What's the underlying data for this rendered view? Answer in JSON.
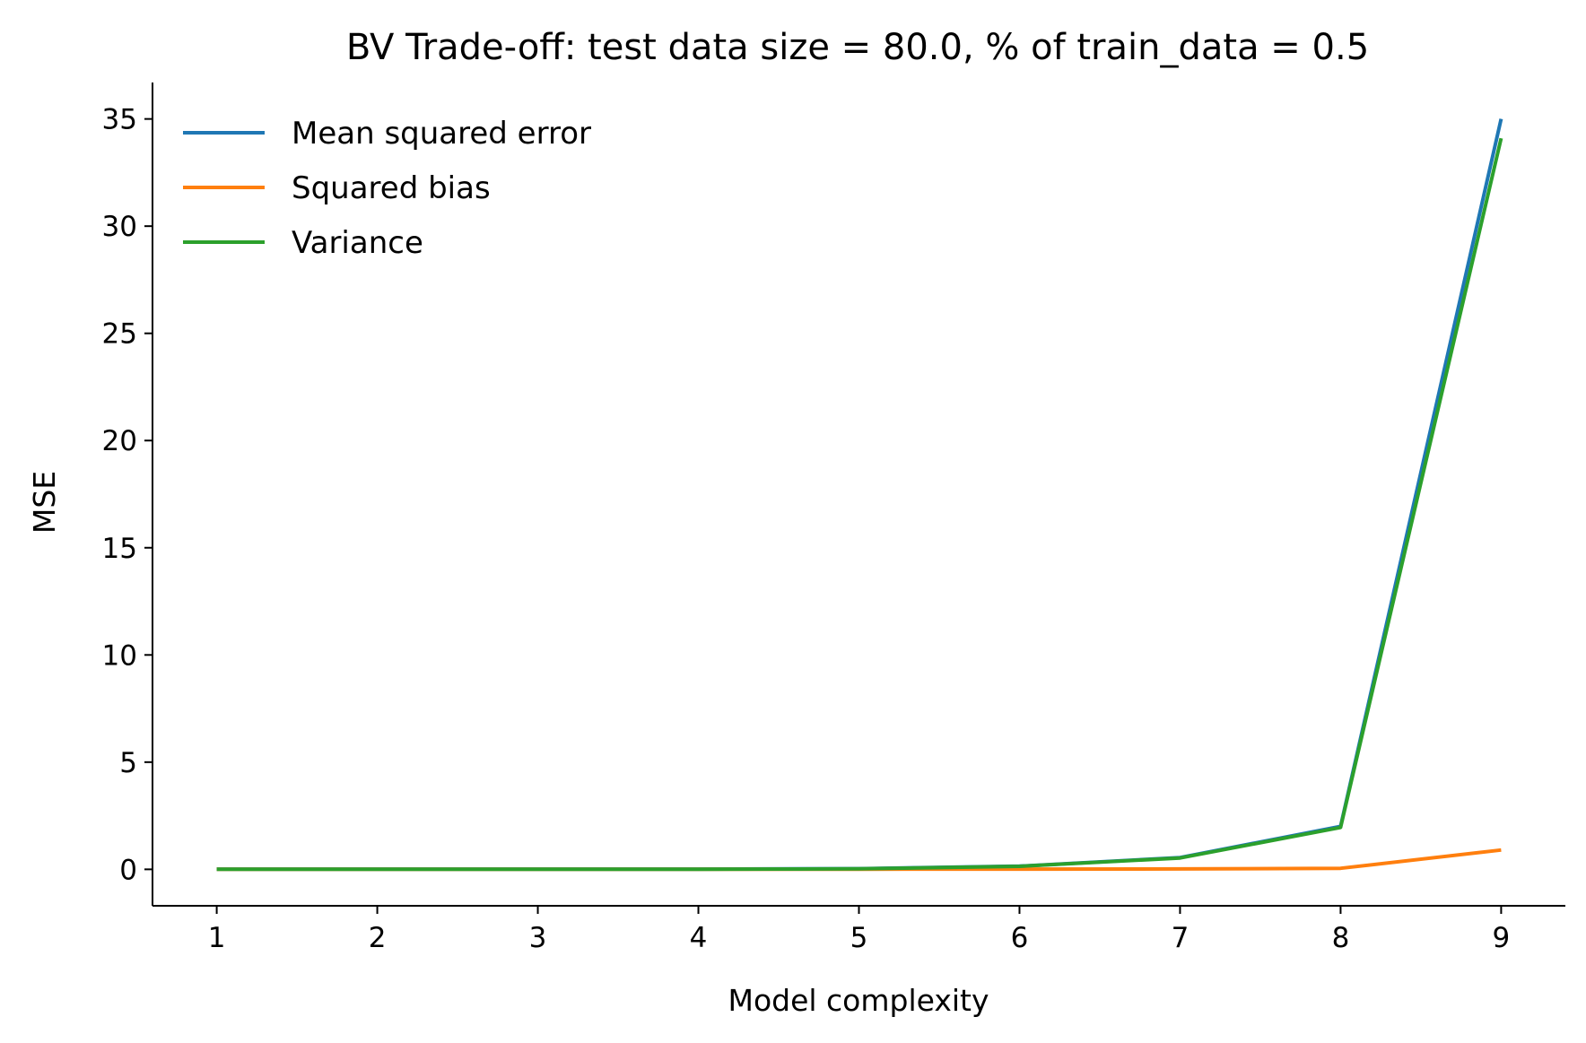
{
  "chart_data": {
    "type": "line",
    "title": "BV Trade-off: test data size = 80.0, % of train_data = 0.5",
    "xlabel": "Model complexity",
    "ylabel": "MSE",
    "x": [
      1,
      2,
      3,
      4,
      5,
      6,
      7,
      8,
      9
    ],
    "xlim": [
      0.6,
      9.4
    ],
    "ylim": [
      -1.7,
      36.7
    ],
    "xticks": [
      1,
      2,
      3,
      4,
      5,
      6,
      7,
      8,
      9
    ],
    "yticks": [
      0,
      5,
      10,
      15,
      20,
      25,
      30,
      35
    ],
    "grid": false,
    "legend": "top-left",
    "series": [
      {
        "name": "Mean squared error",
        "color": "#1f77b4",
        "values": [
          0.01,
          0.01,
          0.01,
          0.01,
          0.03,
          0.15,
          0.55,
          2.0,
          35.0
        ]
      },
      {
        "name": "Squared bias",
        "color": "#ff7f0e",
        "values": [
          0.005,
          0.005,
          0.005,
          0.005,
          0.005,
          0.01,
          0.02,
          0.05,
          0.9
        ]
      },
      {
        "name": "Variance",
        "color": "#2ca02c",
        "values": [
          0.005,
          0.005,
          0.005,
          0.005,
          0.025,
          0.14,
          0.53,
          1.95,
          34.1
        ]
      }
    ]
  }
}
